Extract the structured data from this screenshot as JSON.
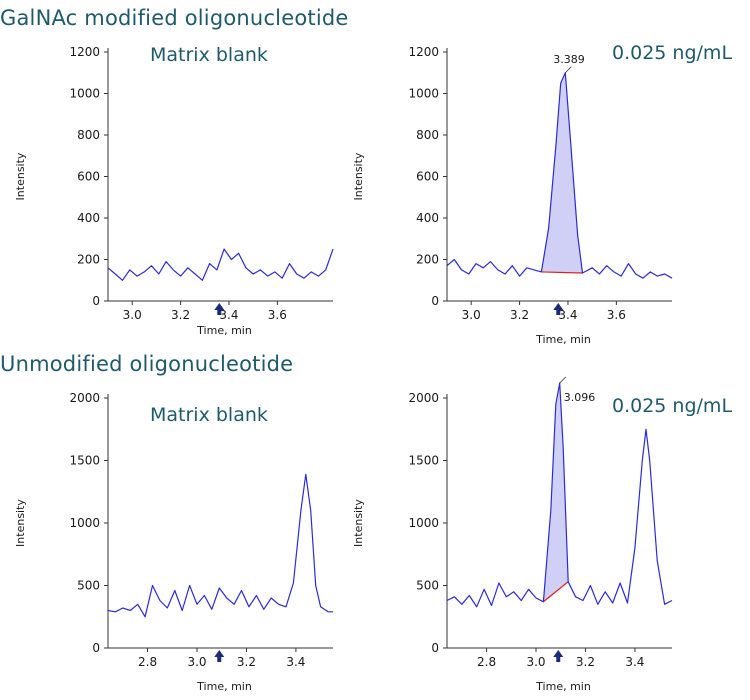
{
  "sections": {
    "top_title": "GalNAc modified oligonucleotide",
    "bottom_title": "Unmodified oligonucleotide"
  },
  "labels": {
    "blank": "Matrix blank",
    "conc": "0.025 ng/mL"
  },
  "colors": {
    "trace": "#2b2bd6",
    "baseline": "#e02020",
    "fill": "#2b2bd6",
    "marker": "#1b2a7a",
    "title": "#1f5a6b"
  },
  "chart_data": [
    {
      "type": "line",
      "xlabel": "Time, min",
      "ylabel": "Intensity",
      "xlim": [
        2.9,
        3.83
      ],
      "ylim": [
        0,
        1200
      ],
      "xticks": [
        3.0,
        3.2,
        3.4,
        3.6
      ],
      "yticks": [
        0,
        200,
        400,
        600,
        800,
        1000,
        1200
      ],
      "marker_x": 3.36,
      "x": [
        2.9,
        2.93,
        2.96,
        2.99,
        3.02,
        3.05,
        3.08,
        3.11,
        3.14,
        3.17,
        3.2,
        3.23,
        3.26,
        3.29,
        3.32,
        3.35,
        3.38,
        3.41,
        3.44,
        3.47,
        3.5,
        3.53,
        3.56,
        3.59,
        3.62,
        3.65,
        3.68,
        3.71,
        3.74,
        3.77,
        3.8,
        3.83
      ],
      "y": [
        160,
        130,
        100,
        150,
        120,
        140,
        170,
        130,
        190,
        150,
        120,
        160,
        130,
        100,
        180,
        150,
        250,
        200,
        230,
        160,
        130,
        150,
        120,
        140,
        110,
        180,
        130,
        110,
        140,
        120,
        150,
        250
      ]
    },
    {
      "type": "line",
      "xlabel": "Time, min",
      "ylabel": "Intensity",
      "xlim": [
        2.9,
        3.83
      ],
      "ylim": [
        0,
        1200
      ],
      "xticks": [
        3.0,
        3.2,
        3.4,
        3.6
      ],
      "yticks": [
        0,
        200,
        400,
        600,
        800,
        1000,
        1200
      ],
      "marker_x": 3.36,
      "peak": {
        "label": "3.389",
        "x": 3.389,
        "y": 1100,
        "start": [
          3.29,
          140
        ],
        "end": [
          3.46,
          135
        ]
      },
      "x": [
        2.9,
        2.93,
        2.96,
        2.99,
        3.02,
        3.05,
        3.08,
        3.11,
        3.14,
        3.17,
        3.2,
        3.23,
        3.26,
        3.29,
        3.32,
        3.35,
        3.37,
        3.389,
        3.41,
        3.44,
        3.46,
        3.5,
        3.53,
        3.56,
        3.59,
        3.62,
        3.65,
        3.68,
        3.71,
        3.74,
        3.77,
        3.8,
        3.83
      ],
      "y": [
        170,
        200,
        150,
        130,
        180,
        160,
        190,
        150,
        130,
        170,
        120,
        160,
        150,
        140,
        350,
        750,
        1050,
        1100,
        780,
        320,
        135,
        160,
        130,
        170,
        140,
        120,
        180,
        130,
        110,
        140,
        120,
        130,
        110
      ]
    },
    {
      "type": "line",
      "xlabel": "Time, min",
      "ylabel": "Intensity",
      "xlim": [
        2.64,
        3.55
      ],
      "ylim": [
        0,
        2200
      ],
      "xticks": [
        2.8,
        3.0,
        3.2,
        3.4
      ],
      "yticks": [
        0,
        500,
        1000,
        1500,
        2000
      ],
      "marker_x": 3.09,
      "x": [
        2.64,
        2.67,
        2.7,
        2.73,
        2.76,
        2.79,
        2.82,
        2.85,
        2.88,
        2.91,
        2.94,
        2.97,
        3.0,
        3.03,
        3.06,
        3.09,
        3.12,
        3.15,
        3.18,
        3.21,
        3.24,
        3.27,
        3.3,
        3.33,
        3.36,
        3.39,
        3.42,
        3.44,
        3.46,
        3.48,
        3.5,
        3.53,
        3.55
      ],
      "y": [
        300,
        290,
        320,
        300,
        350,
        250,
        500,
        380,
        320,
        460,
        300,
        500,
        350,
        420,
        310,
        480,
        400,
        350,
        460,
        330,
        420,
        310,
        400,
        350,
        330,
        520,
        1100,
        1390,
        1100,
        500,
        330,
        290,
        290
      ]
    },
    {
      "type": "line",
      "xlabel": "Time, min",
      "ylabel": "Intensity",
      "xlim": [
        2.64,
        3.55
      ],
      "ylim": [
        0,
        2200
      ],
      "xticks": [
        2.8,
        3.0,
        3.2,
        3.4
      ],
      "yticks": [
        0,
        500,
        1000,
        1500,
        2000
      ],
      "marker_x": 3.09,
      "peak": {
        "label": "3.096",
        "x": 3.096,
        "y": 2120,
        "start": [
          3.03,
          370
        ],
        "end": [
          3.13,
          530
        ]
      },
      "x": [
        2.64,
        2.67,
        2.7,
        2.73,
        2.76,
        2.79,
        2.82,
        2.85,
        2.88,
        2.91,
        2.94,
        2.97,
        3.0,
        3.03,
        3.06,
        3.08,
        3.096,
        3.11,
        3.13,
        3.16,
        3.19,
        3.22,
        3.25,
        3.28,
        3.31,
        3.34,
        3.37,
        3.4,
        3.43,
        3.445,
        3.46,
        3.49,
        3.52,
        3.55
      ],
      "y": [
        380,
        410,
        350,
        420,
        330,
        470,
        340,
        520,
        410,
        450,
        380,
        470,
        400,
        370,
        1100,
        1950,
        2120,
        1600,
        530,
        410,
        380,
        500,
        350,
        450,
        360,
        520,
        360,
        800,
        1500,
        1750,
        1500,
        700,
        350,
        380
      ]
    }
  ]
}
